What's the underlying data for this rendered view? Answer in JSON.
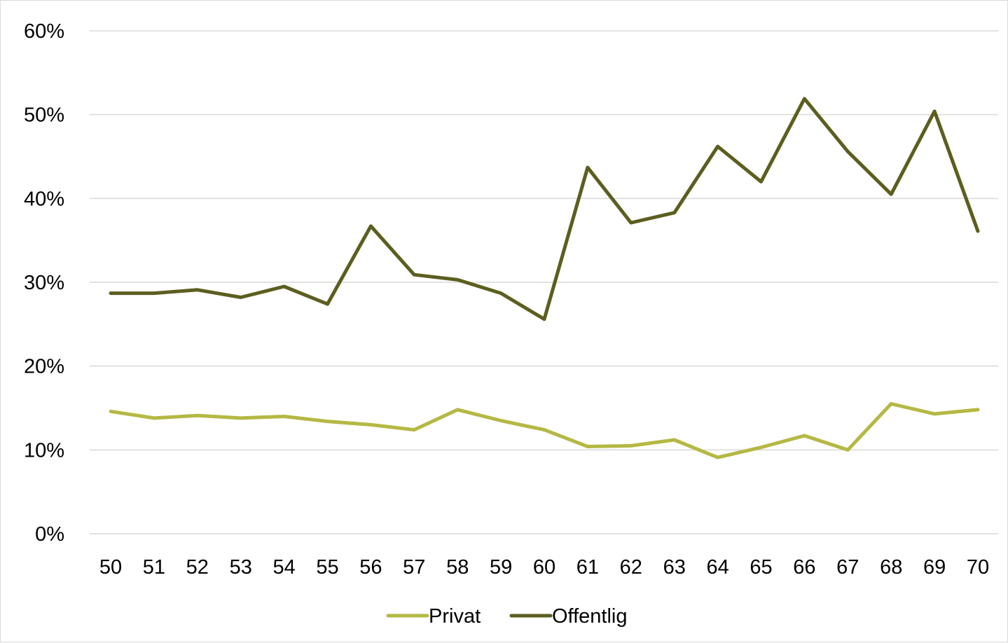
{
  "chart_data": {
    "type": "line",
    "title": "",
    "xlabel": "",
    "ylabel": "",
    "categories": [
      "50",
      "51",
      "52",
      "53",
      "54",
      "55",
      "56",
      "57",
      "58",
      "59",
      "60",
      "61",
      "62",
      "63",
      "64",
      "65",
      "66",
      "67",
      "68",
      "69",
      "70"
    ],
    "y_ticks": [
      "0%",
      "10%",
      "20%",
      "30%",
      "40%",
      "50%",
      "60%"
    ],
    "ylim": [
      0,
      60
    ],
    "grid": "horizontal",
    "legend_position": "bottom",
    "series": [
      {
        "name": "Privat",
        "color": "#b5b843",
        "values": [
          14.6,
          13.8,
          14.1,
          13.8,
          14.0,
          13.4,
          13.0,
          12.4,
          14.8,
          13.5,
          12.4,
          10.4,
          10.5,
          11.2,
          9.1,
          10.3,
          11.7,
          10.0,
          15.5,
          14.3,
          14.8
        ]
      },
      {
        "name": "Offentlig",
        "color": "#5c5e1f",
        "values": [
          28.7,
          28.7,
          29.1,
          28.2,
          29.5,
          27.4,
          36.7,
          30.9,
          30.3,
          28.7,
          25.6,
          43.7,
          37.1,
          38.3,
          46.2,
          42.0,
          51.9,
          45.6,
          40.5,
          50.4,
          36.1
        ]
      }
    ]
  }
}
